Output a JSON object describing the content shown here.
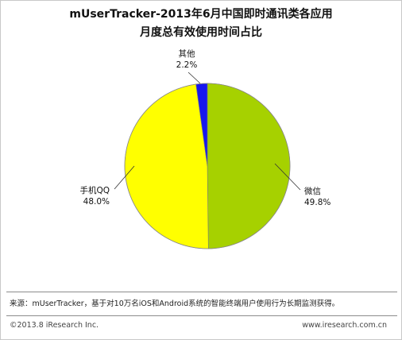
{
  "chart_data": {
    "type": "pie",
    "title_line1": "mUserTracker-2013年6月中国即时通讯类各应用",
    "title_line2": "月度总有效使用时间占比",
    "slices": [
      {
        "name": "微信",
        "value": 49.8,
        "label": "49.8%",
        "color": "#a6d100"
      },
      {
        "name": "手机QQ",
        "value": 48.0,
        "label": "48.0%",
        "color": "#ffff00"
      },
      {
        "name": "其他",
        "value": 2.2,
        "label": "2.2%",
        "color": "#1717ee"
      }
    ]
  },
  "footer": {
    "source": "来源：mUserTracker，基于对10万名iOS和Android系统的智能终端用户使用行为长期监测获得。",
    "copyright": "©2013.8 iResearch Inc.",
    "website": "www.iresearch.com.cn"
  }
}
